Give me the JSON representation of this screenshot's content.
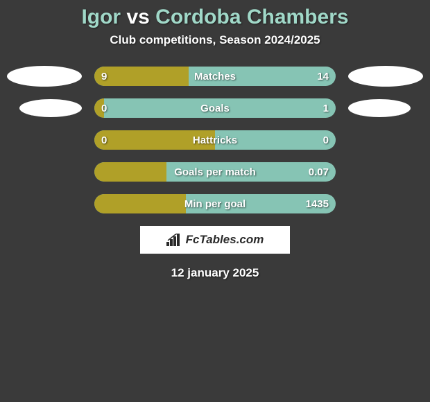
{
  "title": {
    "player1": "Igor",
    "vs": "vs",
    "player2": "Cordoba Chambers"
  },
  "title_color_player": "#a0d8c8",
  "title_color_vs": "#ffffff",
  "title_fontsize": 30,
  "subtitle": "Club competitions, Season 2024/2025",
  "subtitle_fontsize": 17,
  "background_color": "#3a3a3a",
  "bar_right_color": "#86c4b4",
  "bar_left_color": "#b0a028",
  "bar_label_fontsize": 15,
  "crest_left": {
    "w": 108,
    "h": 30,
    "bg": "#ffffff"
  },
  "crest_right": {
    "w": 108,
    "h": 30,
    "bg": "#ffffff"
  },
  "crest_left_row2": {
    "w": 90,
    "h": 26,
    "bg": "#ffffff"
  },
  "crest_right_row2": {
    "w": 90,
    "h": 26,
    "bg": "#ffffff"
  },
  "stats": [
    {
      "name": "Matches",
      "left_val": "9",
      "right_val": "14",
      "left_pct": 39
    },
    {
      "name": "Goals",
      "left_val": "0",
      "right_val": "1",
      "left_pct": 4
    },
    {
      "name": "Hattricks",
      "left_val": "0",
      "right_val": "0",
      "left_pct": 50
    },
    {
      "name": "Goals per match",
      "left_val": "",
      "right_val": "0.07",
      "left_pct": 30
    },
    {
      "name": "Min per goal",
      "left_val": "",
      "right_val": "1435",
      "left_pct": 38
    }
  ],
  "logo_text": "FcTables.com",
  "date": "12 january 2025"
}
